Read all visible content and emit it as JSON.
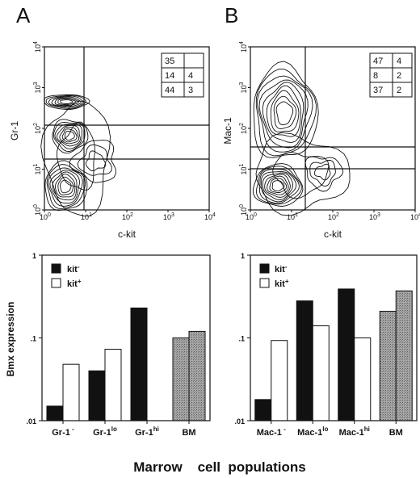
{
  "panels": [
    {
      "letter": "A",
      "flow": {
        "xlabel": "c-kit",
        "ylabel": "Gr-1",
        "quadrant_table": [
          [
            "35",
            ""
          ],
          [
            "14",
            "4"
          ],
          [
            "44",
            "3"
          ]
        ]
      }
    },
    {
      "letter": "B",
      "flow": {
        "xlabel": "c-kit",
        "ylabel": "Mac-1",
        "quadrant_table": [
          [
            "47",
            "4"
          ],
          [
            "8",
            "2"
          ],
          [
            "37",
            "2"
          ]
        ]
      }
    }
  ],
  "footer": "Marrow    cell  populations",
  "legend": {
    "kit_neg": "kit",
    "kit_pos": "kit",
    "sup_neg": "-",
    "sup_pos": "+"
  },
  "colors": {
    "kit_neg": "#111111",
    "kit_pos": "#ffffff",
    "bm": "#9a9a9a"
  },
  "chart_data": [
    {
      "type": "bar",
      "panel": "A",
      "ylabel": "Bmx expression",
      "yscale": "log",
      "ylim": [
        0.01,
        1
      ],
      "yticks": [
        {
          "value": 0.01,
          "label": ".01"
        },
        {
          "value": 0.1,
          "label": ".1"
        },
        {
          "value": 1,
          "label": "1"
        }
      ],
      "categories": [
        {
          "base": "Gr-1",
          "sup": " -"
        },
        {
          "base": "Gr-1",
          "sup": "lo"
        },
        {
          "base": "Gr-1",
          "sup": "hi"
        },
        {
          "base": "BM",
          "sup": ""
        }
      ],
      "series": [
        {
          "name": "kit-",
          "values": [
            0.015,
            0.04,
            0.23,
            0.1
          ]
        },
        {
          "name": "kit+",
          "values": [
            0.048,
            0.073,
            null,
            0.12
          ]
        }
      ]
    },
    {
      "type": "bar",
      "panel": "B",
      "ylabel": "",
      "yscale": "log",
      "ylim": [
        0.01,
        1
      ],
      "yticks": [
        {
          "value": 0.01,
          "label": ".01"
        },
        {
          "value": 0.1,
          "label": ".1"
        },
        {
          "value": 1,
          "label": "1"
        }
      ],
      "categories": [
        {
          "base": "Mac-1",
          "sup": " -"
        },
        {
          "base": "Mac-1",
          "sup": "lo"
        },
        {
          "base": "Mac-1",
          "sup": "hi"
        },
        {
          "base": "BM",
          "sup": ""
        }
      ],
      "series": [
        {
          "name": "kit-",
          "values": [
            0.018,
            0.28,
            0.39,
            0.21
          ]
        },
        {
          "name": "kit+",
          "values": [
            0.093,
            0.14,
            0.1,
            0.37
          ]
        }
      ]
    }
  ]
}
